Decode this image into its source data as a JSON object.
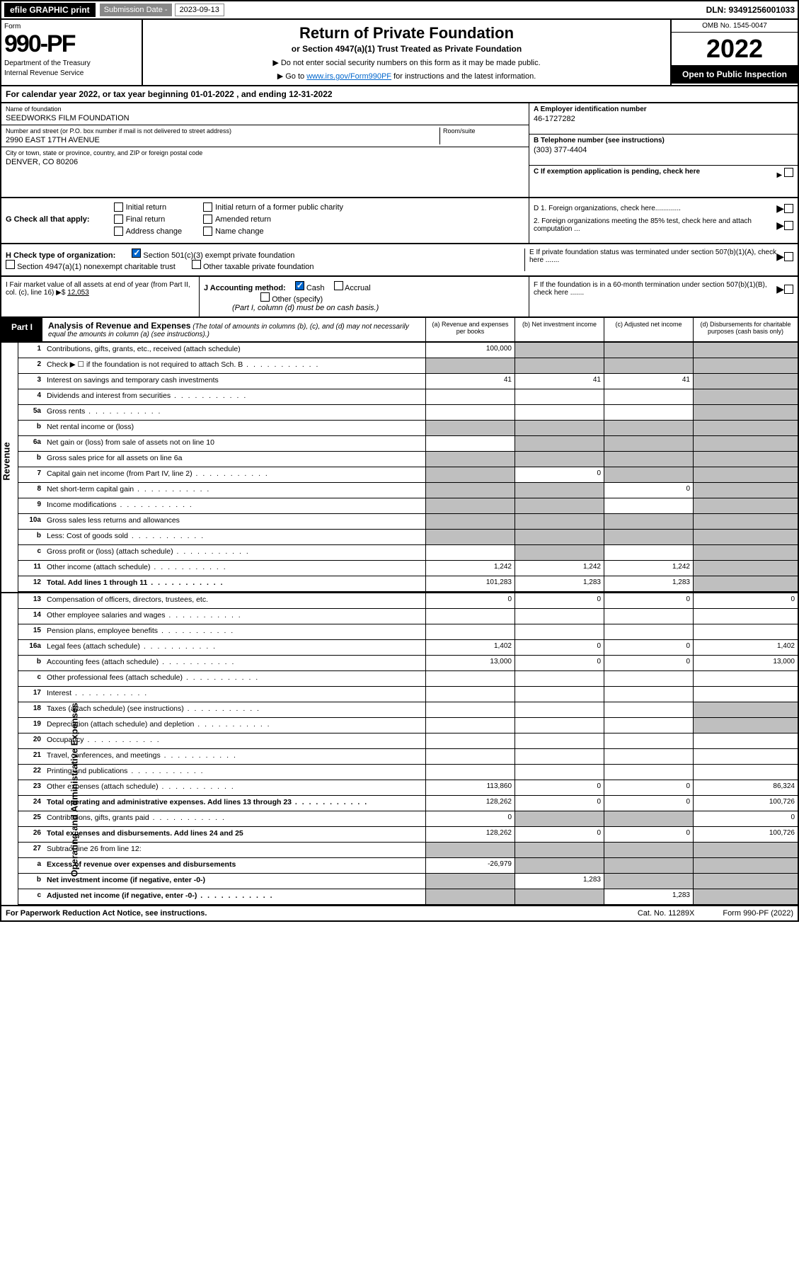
{
  "topbar": {
    "efile": "efile GRAPHIC print",
    "sub_label": "Submission Date - ",
    "sub_date": "2023-09-13",
    "dln": "DLN: 93491256001033"
  },
  "header": {
    "form": "Form",
    "num": "990-PF",
    "dept": "Department of the Treasury",
    "irs": "Internal Revenue Service",
    "title": "Return of Private Foundation",
    "sub": "or Section 4947(a)(1) Trust Treated as Private Foundation",
    "note1": "▶ Do not enter social security numbers on this form as it may be made public.",
    "note2": "▶ Go to ",
    "link": "www.irs.gov/Form990PF",
    "note3": " for instructions and the latest information.",
    "omb": "OMB No. 1545-0047",
    "year": "2022",
    "open": "Open to Public Inspection"
  },
  "cal": "For calendar year 2022, or tax year beginning 01-01-2022               , and ending 12-31-2022",
  "name": {
    "lbl": "Name of foundation",
    "val": "SEEDWORKS FILM FOUNDATION"
  },
  "addr": {
    "lbl": "Number and street (or P.O. box number if mail is not delivered to street address)",
    "val": "2990 EAST 17TH AVENUE",
    "room": "Room/suite"
  },
  "city": {
    "lbl": "City or town, state or province, country, and ZIP or foreign postal code",
    "val": "DENVER, CO  80206"
  },
  "a": {
    "lbl": "A Employer identification number",
    "val": "46-1727282"
  },
  "b": {
    "lbl": "B Telephone number (see instructions)",
    "val": "(303) 377-4404"
  },
  "c": {
    "lbl": "C If exemption application is pending, check here"
  },
  "g": {
    "lbl": "G Check all that apply:",
    "opts": [
      "Initial return",
      "Final return",
      "Address change",
      "Initial return of a former public charity",
      "Amended return",
      "Name change"
    ]
  },
  "d": {
    "d1": "D 1. Foreign organizations, check here.............",
    "d2": "2. Foreign organizations meeting the 85% test, check here and attach computation ..."
  },
  "h": {
    "lbl": "H Check type of organization:",
    "o1": "Section 501(c)(3) exempt private foundation",
    "o2": "Section 4947(a)(1) nonexempt charitable trust",
    "o3": "Other taxable private foundation"
  },
  "e": {
    "txt": "E  If private foundation status was terminated under section 507(b)(1)(A), check here ......."
  },
  "i": {
    "lbl": "I Fair market value of all assets at end of year (from Part II, col. (c), line 16)",
    "arr": "▶$",
    "val": "12,053"
  },
  "j": {
    "lbl": "J Accounting method:",
    "cash": "Cash",
    "acc": "Accrual",
    "oth": "Other (specify)",
    "note": "(Part I, column (d) must be on cash basis.)"
  },
  "f": {
    "txt": "F  If the foundation is in a 60-month termination under section 507(b)(1)(B), check here ......."
  },
  "part": {
    "tab": "Part I",
    "title": "Analysis of Revenue and Expenses",
    "note": "(The total of amounts in columns (b), (c), and (d) may not necessarily equal the amounts in column (a) (see instructions).)",
    "cols": [
      "(a)  Revenue and expenses per books",
      "(b)  Net investment income",
      "(c)  Adjusted net income",
      "(d)  Disbursements for charitable purposes (cash basis only)"
    ]
  },
  "rows": [
    {
      "n": "1",
      "d": "Contributions, gifts, grants, etc., received (attach schedule)",
      "a": "100,000",
      "shade": [
        "b",
        "c",
        "d"
      ]
    },
    {
      "n": "2",
      "d": "Check ▶ ☐ if the foundation is not required to attach Sch. B",
      "dots": true,
      "shade": [
        "a",
        "b",
        "c",
        "d"
      ]
    },
    {
      "n": "3",
      "d": "Interest on savings and temporary cash investments",
      "a": "41",
      "b": "41",
      "c": "41",
      "shade": [
        "d"
      ]
    },
    {
      "n": "4",
      "d": "Dividends and interest from securities",
      "dots": true,
      "shade": [
        "d"
      ]
    },
    {
      "n": "5a",
      "d": "Gross rents",
      "dots": true,
      "shade": [
        "d"
      ]
    },
    {
      "n": "b",
      "d": "Net rental income or (loss)",
      "shade": [
        "a",
        "b",
        "c",
        "d"
      ]
    },
    {
      "n": "6a",
      "d": "Net gain or (loss) from sale of assets not on line 10",
      "shade": [
        "b",
        "c",
        "d"
      ]
    },
    {
      "n": "b",
      "d": "Gross sales price for all assets on line 6a",
      "shade": [
        "a",
        "b",
        "c",
        "d"
      ]
    },
    {
      "n": "7",
      "d": "Capital gain net income (from Part IV, line 2)",
      "dots": true,
      "b": "0",
      "shade": [
        "a",
        "c",
        "d"
      ]
    },
    {
      "n": "8",
      "d": "Net short-term capital gain",
      "dots": true,
      "c": "0",
      "shade": [
        "a",
        "b",
        "d"
      ]
    },
    {
      "n": "9",
      "d": "Income modifications",
      "dots": true,
      "shade": [
        "a",
        "b",
        "d"
      ]
    },
    {
      "n": "10a",
      "d": "Gross sales less returns and allowances",
      "shade": [
        "a",
        "b",
        "c",
        "d"
      ]
    },
    {
      "n": "b",
      "d": "Less: Cost of goods sold",
      "dots": true,
      "shade": [
        "a",
        "b",
        "c",
        "d"
      ]
    },
    {
      "n": "c",
      "d": "Gross profit or (loss) (attach schedule)",
      "dots": true,
      "shade": [
        "b",
        "d"
      ]
    },
    {
      "n": "11",
      "d": "Other income (attach schedule)",
      "dots": true,
      "a": "1,242",
      "b": "1,242",
      "c": "1,242",
      "shade": [
        "d"
      ]
    },
    {
      "n": "12",
      "d": "Total. Add lines 1 through 11",
      "dots": true,
      "bold": true,
      "a": "101,283",
      "b": "1,283",
      "c": "1,283",
      "shade": [
        "d"
      ]
    }
  ],
  "exp_rows": [
    {
      "n": "13",
      "d": "Compensation of officers, directors, trustees, etc.",
      "a": "0",
      "b": "0",
      "c": "0",
      "dd": "0"
    },
    {
      "n": "14",
      "d": "Other employee salaries and wages",
      "dots": true
    },
    {
      "n": "15",
      "d": "Pension plans, employee benefits",
      "dots": true
    },
    {
      "n": "16a",
      "d": "Legal fees (attach schedule)",
      "dots": true,
      "a": "1,402",
      "b": "0",
      "c": "0",
      "dd": "1,402"
    },
    {
      "n": "b",
      "d": "Accounting fees (attach schedule)",
      "dots": true,
      "a": "13,000",
      "b": "0",
      "c": "0",
      "dd": "13,000"
    },
    {
      "n": "c",
      "d": "Other professional fees (attach schedule)",
      "dots": true
    },
    {
      "n": "17",
      "d": "Interest",
      "dots": true
    },
    {
      "n": "18",
      "d": "Taxes (attach schedule) (see instructions)",
      "dots": true,
      "shade": [
        "d"
      ]
    },
    {
      "n": "19",
      "d": "Depreciation (attach schedule) and depletion",
      "dots": true,
      "shade": [
        "d"
      ]
    },
    {
      "n": "20",
      "d": "Occupancy",
      "dots": true
    },
    {
      "n": "21",
      "d": "Travel, conferences, and meetings",
      "dots": true
    },
    {
      "n": "22",
      "d": "Printing and publications",
      "dots": true
    },
    {
      "n": "23",
      "d": "Other expenses (attach schedule)",
      "dots": true,
      "a": "113,860",
      "b": "0",
      "c": "0",
      "dd": "86,324"
    },
    {
      "n": "24",
      "d": "Total operating and administrative expenses. Add lines 13 through 23",
      "dots": true,
      "bold": true,
      "a": "128,262",
      "b": "0",
      "c": "0",
      "dd": "100,726"
    },
    {
      "n": "25",
      "d": "Contributions, gifts, grants paid",
      "dots": true,
      "a": "0",
      "dd": "0",
      "shade": [
        "b",
        "c"
      ]
    },
    {
      "n": "26",
      "d": "Total expenses and disbursements. Add lines 24 and 25",
      "bold": true,
      "a": "128,262",
      "b": "0",
      "c": "0",
      "dd": "100,726"
    },
    {
      "n": "27",
      "d": "Subtract line 26 from line 12:",
      "shade": [
        "a",
        "b",
        "c",
        "d"
      ]
    },
    {
      "n": "a",
      "d": "Excess of revenue over expenses and disbursements",
      "bold": true,
      "a": "-26,979",
      "shade": [
        "b",
        "c",
        "d"
      ]
    },
    {
      "n": "b",
      "d": "Net investment income (if negative, enter -0-)",
      "bold": true,
      "b": "1,283",
      "shade": [
        "a",
        "c",
        "d"
      ]
    },
    {
      "n": "c",
      "d": "Adjusted net income (if negative, enter -0-)",
      "dots": true,
      "bold": true,
      "c": "1,283",
      "shade": [
        "a",
        "b",
        "d"
      ]
    }
  ],
  "footer": {
    "l": "For Paperwork Reduction Act Notice, see instructions.",
    "m": "Cat. No. 11289X",
    "r": "Form 990-PF (2022)"
  }
}
